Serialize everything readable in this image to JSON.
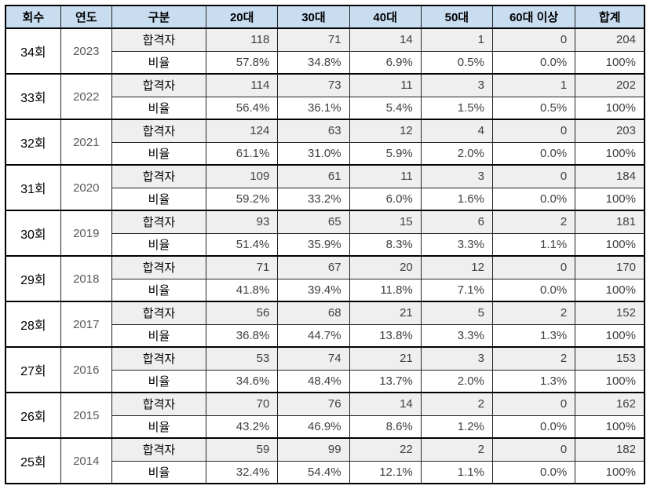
{
  "chart_data": {
    "type": "table",
    "columns": [
      "회수",
      "연도",
      "구분",
      "20대",
      "30대",
      "40대",
      "50대",
      "60대 이상",
      "합계"
    ],
    "row_labels": {
      "passers": "합격자",
      "ratio": "비율"
    },
    "groups": [
      {
        "round": "34회",
        "year": "2023",
        "passers": [
          "118",
          "71",
          "14",
          "1",
          "0",
          "204"
        ],
        "ratio": [
          "57.8%",
          "34.8%",
          "6.9%",
          "0.5%",
          "0.0%",
          "100%"
        ]
      },
      {
        "round": "33회",
        "year": "2022",
        "passers": [
          "114",
          "73",
          "11",
          "3",
          "1",
          "202"
        ],
        "ratio": [
          "56.4%",
          "36.1%",
          "5.4%",
          "1.5%",
          "0.5%",
          "100%"
        ]
      },
      {
        "round": "32회",
        "year": "2021",
        "passers": [
          "124",
          "63",
          "12",
          "4",
          "0",
          "203"
        ],
        "ratio": [
          "61.1%",
          "31.0%",
          "5.9%",
          "2.0%",
          "0.0%",
          "100%"
        ]
      },
      {
        "round": "31회",
        "year": "2020",
        "passers": [
          "109",
          "61",
          "11",
          "3",
          "0",
          "184"
        ],
        "ratio": [
          "59.2%",
          "33.2%",
          "6.0%",
          "1.6%",
          "0.0%",
          "100%"
        ]
      },
      {
        "round": "30회",
        "year": "2019",
        "passers": [
          "93",
          "65",
          "15",
          "6",
          "2",
          "181"
        ],
        "ratio": [
          "51.4%",
          "35.9%",
          "8.3%",
          "3.3%",
          "1.1%",
          "100%"
        ]
      },
      {
        "round": "29회",
        "year": "2018",
        "passers": [
          "71",
          "67",
          "20",
          "12",
          "0",
          "170"
        ],
        "ratio": [
          "41.8%",
          "39.4%",
          "11.8%",
          "7.1%",
          "0.0%",
          "100%"
        ]
      },
      {
        "round": "28회",
        "year": "2017",
        "passers": [
          "56",
          "68",
          "21",
          "5",
          "2",
          "152"
        ],
        "ratio": [
          "36.8%",
          "44.7%",
          "13.8%",
          "3.3%",
          "1.3%",
          "100%"
        ]
      },
      {
        "round": "27회",
        "year": "2016",
        "passers": [
          "53",
          "74",
          "21",
          "3",
          "2",
          "153"
        ],
        "ratio": [
          "34.6%",
          "48.4%",
          "13.7%",
          "2.0%",
          "1.3%",
          "100%"
        ]
      },
      {
        "round": "26회",
        "year": "2015",
        "passers": [
          "70",
          "76",
          "14",
          "2",
          "0",
          "162"
        ],
        "ratio": [
          "43.2%",
          "46.9%",
          "8.6%",
          "1.2%",
          "0.0%",
          "100%"
        ]
      },
      {
        "round": "25회",
        "year": "2014",
        "passers": [
          "59",
          "99",
          "22",
          "2",
          "0",
          "182"
        ],
        "ratio": [
          "32.4%",
          "54.4%",
          "12.1%",
          "1.1%",
          "0.0%",
          "100%"
        ]
      }
    ]
  },
  "styles": {
    "header_bg": "#c9ddf0",
    "band_bg": "#efefef",
    "border_color": "#000000",
    "number_text": "#404040",
    "year_text": "#595959"
  }
}
